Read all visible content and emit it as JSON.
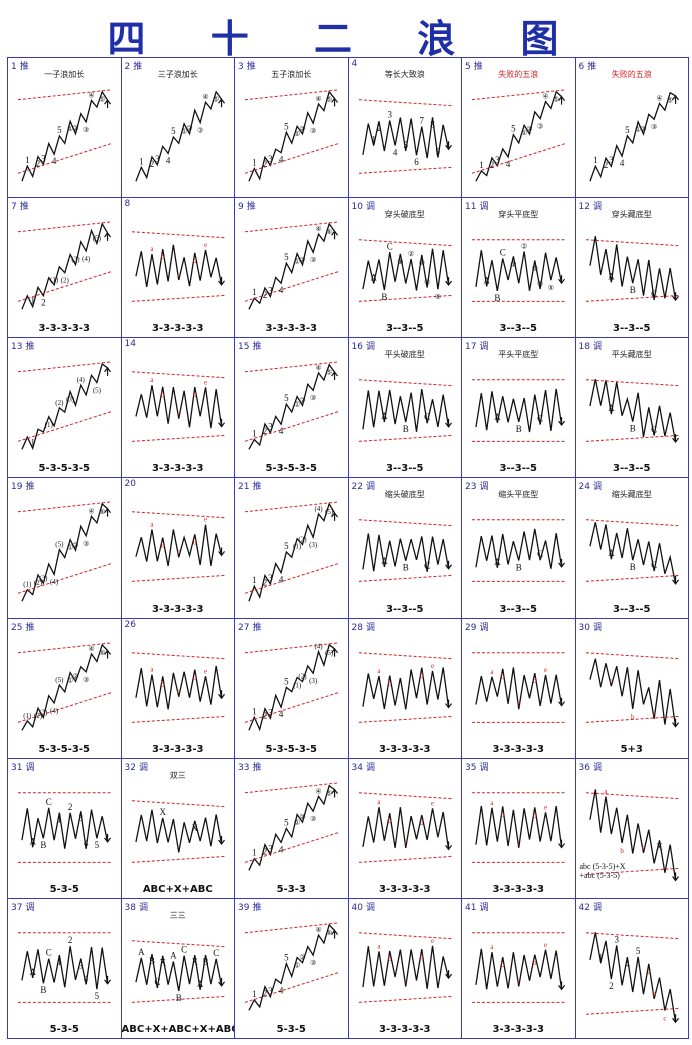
{
  "title": "四 十 二 浪 图",
  "colors": {
    "border": "#3a3ab8",
    "ink": "#111111",
    "accent": "#d42020",
    "title": "#1f2fa8"
  },
  "cells": [
    {
      "num": "1",
      "kind": "推",
      "sub": "一子浪加长",
      "sub_red": false,
      "cap": "",
      "side": "",
      "labels": [
        "1",
        "2",
        "3",
        "4",
        "5",
        "①",
        "②",
        "③",
        "④",
        "⑤"
      ]
    },
    {
      "num": "2",
      "kind": "推",
      "sub": "三子浪加长",
      "sub_red": false,
      "cap": "",
      "side": "",
      "labels": [
        "1",
        "2",
        "3",
        "4",
        "5",
        "①",
        "②",
        "③",
        "④",
        "⑤"
      ]
    },
    {
      "num": "3",
      "kind": "推",
      "sub": "五子浪加长",
      "sub_red": false,
      "cap": "",
      "side": "",
      "labels": [
        "1",
        "2",
        "3",
        "4",
        "5",
        "①",
        "②",
        "③",
        "④",
        "⑤"
      ]
    },
    {
      "num": "4",
      "kind": "",
      "sub": "等长大致浪",
      "sub_red": false,
      "cap": "",
      "side": "",
      "labels": [
        "1",
        "2",
        "3",
        "4",
        "5",
        "6",
        "7",
        "8",
        "9"
      ]
    },
    {
      "num": "5",
      "kind": "推",
      "sub": "失败的五浪",
      "sub_red": true,
      "cap": "",
      "side": "",
      "labels": [
        "1",
        "2",
        "3",
        "4",
        "5",
        "①",
        "②",
        "③",
        "④",
        "⑤"
      ]
    },
    {
      "num": "6",
      "kind": "推",
      "sub": "失败的五浪",
      "sub_red": true,
      "cap": "",
      "side": "",
      "labels": [
        "1",
        "2",
        "3",
        "4",
        "5",
        "①",
        "②",
        "③",
        "④",
        "⑤"
      ]
    },
    {
      "num": "7",
      "kind": "推",
      "sub": "",
      "sub_red": false,
      "cap": "3-3-3-3-3",
      "side": "",
      "labels": [
        "1",
        "2",
        "(1)",
        "(2)",
        "(3)",
        "(4)",
        "(5)"
      ]
    },
    {
      "num": "8",
      "kind": "",
      "sub": "",
      "sub_red": false,
      "cap": "3-3-3-3-3",
      "side": "",
      "labels": [
        "a",
        "b",
        "c",
        "d",
        "e"
      ]
    },
    {
      "num": "9",
      "kind": "推",
      "sub": "",
      "sub_red": false,
      "cap": "3-3-3-3-3",
      "side": "",
      "labels": [
        "1",
        "2",
        "3",
        "4",
        "5",
        "①",
        "②",
        "③",
        "④",
        "⑤"
      ]
    },
    {
      "num": "10",
      "kind": "调",
      "sub": "穿头破底型",
      "sub_red": false,
      "cap": "3--3--5",
      "side": "",
      "labels": [
        "A",
        "B",
        "C",
        "①",
        "②",
        "③",
        "④",
        "⑤"
      ]
    },
    {
      "num": "11",
      "kind": "调",
      "sub": "穿头平底型",
      "sub_red": false,
      "cap": "3--3--5",
      "side": "",
      "labels": [
        "A",
        "B",
        "C",
        "①",
        "②",
        "③",
        "④",
        "⑤"
      ]
    },
    {
      "num": "12",
      "kind": "调",
      "sub": "穿头藏底型",
      "sub_red": false,
      "cap": "3--3--5",
      "side": "",
      "labels": [
        "A",
        "B",
        "C"
      ]
    },
    {
      "num": "13",
      "kind": "推",
      "sub": "",
      "sub_red": false,
      "cap": "5-3-5-3-5",
      "side": "",
      "labels": [
        "1",
        "(1)",
        "(2)",
        "(3)",
        "(4)",
        "(5)"
      ]
    },
    {
      "num": "14",
      "kind": "",
      "sub": "",
      "sub_red": false,
      "cap": "3-3-3-3-3",
      "side": "",
      "labels": [
        "a",
        "b",
        "c",
        "d",
        "e"
      ]
    },
    {
      "num": "15",
      "kind": "推",
      "sub": "",
      "sub_red": false,
      "cap": "5-3-5-3-5",
      "side": "",
      "labels": [
        "1",
        "2",
        "3",
        "4",
        "5",
        "①",
        "②",
        "③",
        "④",
        "⑤"
      ]
    },
    {
      "num": "16",
      "kind": "调",
      "sub": "平头破底型",
      "sub_red": false,
      "cap": "3--3--5",
      "side": "",
      "labels": [
        "A",
        "B",
        "C"
      ]
    },
    {
      "num": "17",
      "kind": "调",
      "sub": "平头平底型",
      "sub_red": false,
      "cap": "3--3--5",
      "side": "",
      "labels": [
        "A",
        "B",
        "C"
      ]
    },
    {
      "num": "18",
      "kind": "调",
      "sub": "平头藏底型",
      "sub_red": false,
      "cap": "3--3--5",
      "side": "",
      "labels": [
        "A",
        "B",
        "C"
      ]
    },
    {
      "num": "19",
      "kind": "推",
      "sub": "",
      "sub_red": false,
      "cap": "",
      "side": "",
      "labels": [
        "(1)",
        "(2)",
        "(3)",
        "(4)",
        "(5)",
        "①",
        "②",
        "③",
        "④",
        "⑤"
      ]
    },
    {
      "num": "20",
      "kind": "",
      "sub": "",
      "sub_red": false,
      "cap": "3-3-3-3-3",
      "side": "",
      "labels": [
        "a",
        "b",
        "c",
        "d",
        "e"
      ]
    },
    {
      "num": "21",
      "kind": "推",
      "sub": "",
      "sub_red": false,
      "cap": "",
      "side": "",
      "labels": [
        "1",
        "2",
        "3",
        "4",
        "5",
        "(1)",
        "(2)",
        "(3)",
        "(4)",
        "(5)"
      ]
    },
    {
      "num": "22",
      "kind": "调",
      "sub": "缩头破底型",
      "sub_red": false,
      "cap": "3--3--5",
      "side": "",
      "labels": [
        "A",
        "B",
        "C"
      ]
    },
    {
      "num": "23",
      "kind": "调",
      "sub": "缩头平底型",
      "sub_red": false,
      "cap": "3--3--5",
      "side": "",
      "labels": [
        "A",
        "B",
        "C"
      ]
    },
    {
      "num": "24",
      "kind": "调",
      "sub": "缩头藏底型",
      "sub_red": false,
      "cap": "3--3--5",
      "side": "",
      "labels": [
        "A",
        "B",
        "C"
      ]
    },
    {
      "num": "25",
      "kind": "推",
      "sub": "",
      "sub_red": false,
      "cap": "5-3-5-3-5",
      "side": "",
      "labels": [
        "(1)",
        "(2)",
        "(3)",
        "(4)",
        "(5)",
        "①",
        "②",
        "③",
        "④",
        "⑤"
      ]
    },
    {
      "num": "26",
      "kind": "",
      "sub": "",
      "sub_red": false,
      "cap": "3-3-3-3-3",
      "side": "",
      "labels": [
        "a",
        "b",
        "c",
        "d",
        "e"
      ]
    },
    {
      "num": "27",
      "kind": "推",
      "sub": "",
      "sub_red": false,
      "cap": "5-3-5-3-5",
      "side": "",
      "labels": [
        "1",
        "2",
        "3",
        "4",
        "5",
        "(1)",
        "(2)",
        "(3)",
        "(4)",
        "(5)"
      ]
    },
    {
      "num": "28",
      "kind": "调",
      "sub": "",
      "sub_red": false,
      "cap": "3-3-3-3-3",
      "side": "",
      "labels": [
        "a",
        "b",
        "c",
        "d",
        "e"
      ]
    },
    {
      "num": "29",
      "kind": "调",
      "sub": "",
      "sub_red": false,
      "cap": "3-3-3-3-3",
      "side": "",
      "labels": [
        "a",
        "b",
        "c",
        "d",
        "e"
      ]
    },
    {
      "num": "30",
      "kind": "调",
      "sub": "",
      "sub_red": false,
      "cap": "5+3",
      "side": "",
      "labels": [
        "a",
        "b",
        "c"
      ]
    },
    {
      "num": "31",
      "kind": "调",
      "sub": "",
      "sub_red": false,
      "cap": "5-3-5",
      "side": "",
      "labels": [
        "A",
        "B",
        "C",
        "1",
        "2",
        "3",
        "4",
        "5"
      ]
    },
    {
      "num": "32",
      "kind": "调",
      "sub": "双三",
      "sub_red": false,
      "cap": "ABC+X+ABC",
      "side": "",
      "labels": [
        "X",
        "X"
      ]
    },
    {
      "num": "33",
      "kind": "推",
      "sub": "",
      "sub_red": false,
      "cap": "5-3-3",
      "side": "",
      "labels": [
        "1",
        "2",
        "3",
        "4",
        "5",
        "①",
        "②",
        "③",
        "④",
        "⑤"
      ]
    },
    {
      "num": "34",
      "kind": "调",
      "sub": "",
      "sub_red": false,
      "cap": "3-3-3-3-3",
      "side": "",
      "labels": [
        "a",
        "b",
        "c",
        "d",
        "e"
      ]
    },
    {
      "num": "35",
      "kind": "调",
      "sub": "",
      "sub_red": false,
      "cap": "3-3-3-3-3",
      "side": "",
      "labels": [
        "a",
        "b",
        "c",
        "d",
        "e"
      ]
    },
    {
      "num": "36",
      "kind": "调",
      "sub": "",
      "sub_red": false,
      "cap": "",
      "side": "abc (5-3-5)+X\n+abc (5-3-5)",
      "labels": [
        "a",
        "b",
        "c",
        "X"
      ]
    },
    {
      "num": "37",
      "kind": "调",
      "sub": "",
      "sub_red": false,
      "cap": "5-3-5",
      "side": "",
      "labels": [
        "A",
        "B",
        "C",
        "1",
        "2",
        "3",
        "4",
        "5"
      ]
    },
    {
      "num": "38",
      "kind": "调",
      "sub": "三三",
      "sub_red": false,
      "cap": "ABC+X+ABC+X+ABC",
      "side": "",
      "labels": [
        "A",
        "B",
        "C",
        "X",
        "A",
        "B",
        "C",
        "X",
        "A",
        "B",
        "C"
      ]
    },
    {
      "num": "39",
      "kind": "推",
      "sub": "",
      "sub_red": false,
      "cap": "5-3-5",
      "side": "",
      "labels": [
        "1",
        "2",
        "3",
        "4",
        "5",
        "①",
        "②",
        "③",
        "④",
        "⑤"
      ]
    },
    {
      "num": "40",
      "kind": "调",
      "sub": "",
      "sub_red": false,
      "cap": "3-3-3-3-3",
      "side": "",
      "labels": [
        "a",
        "b",
        "c",
        "d",
        "e"
      ]
    },
    {
      "num": "41",
      "kind": "调",
      "sub": "",
      "sub_red": false,
      "cap": "3-3-3-3-3",
      "side": "",
      "labels": [
        "a",
        "b",
        "c",
        "d",
        "e"
      ]
    },
    {
      "num": "42",
      "kind": "调",
      "sub": "",
      "sub_red": false,
      "cap": "",
      "side": "",
      "labels": [
        "1",
        "2",
        "3",
        "4",
        "5",
        "a",
        "b",
        "c"
      ]
    }
  ]
}
